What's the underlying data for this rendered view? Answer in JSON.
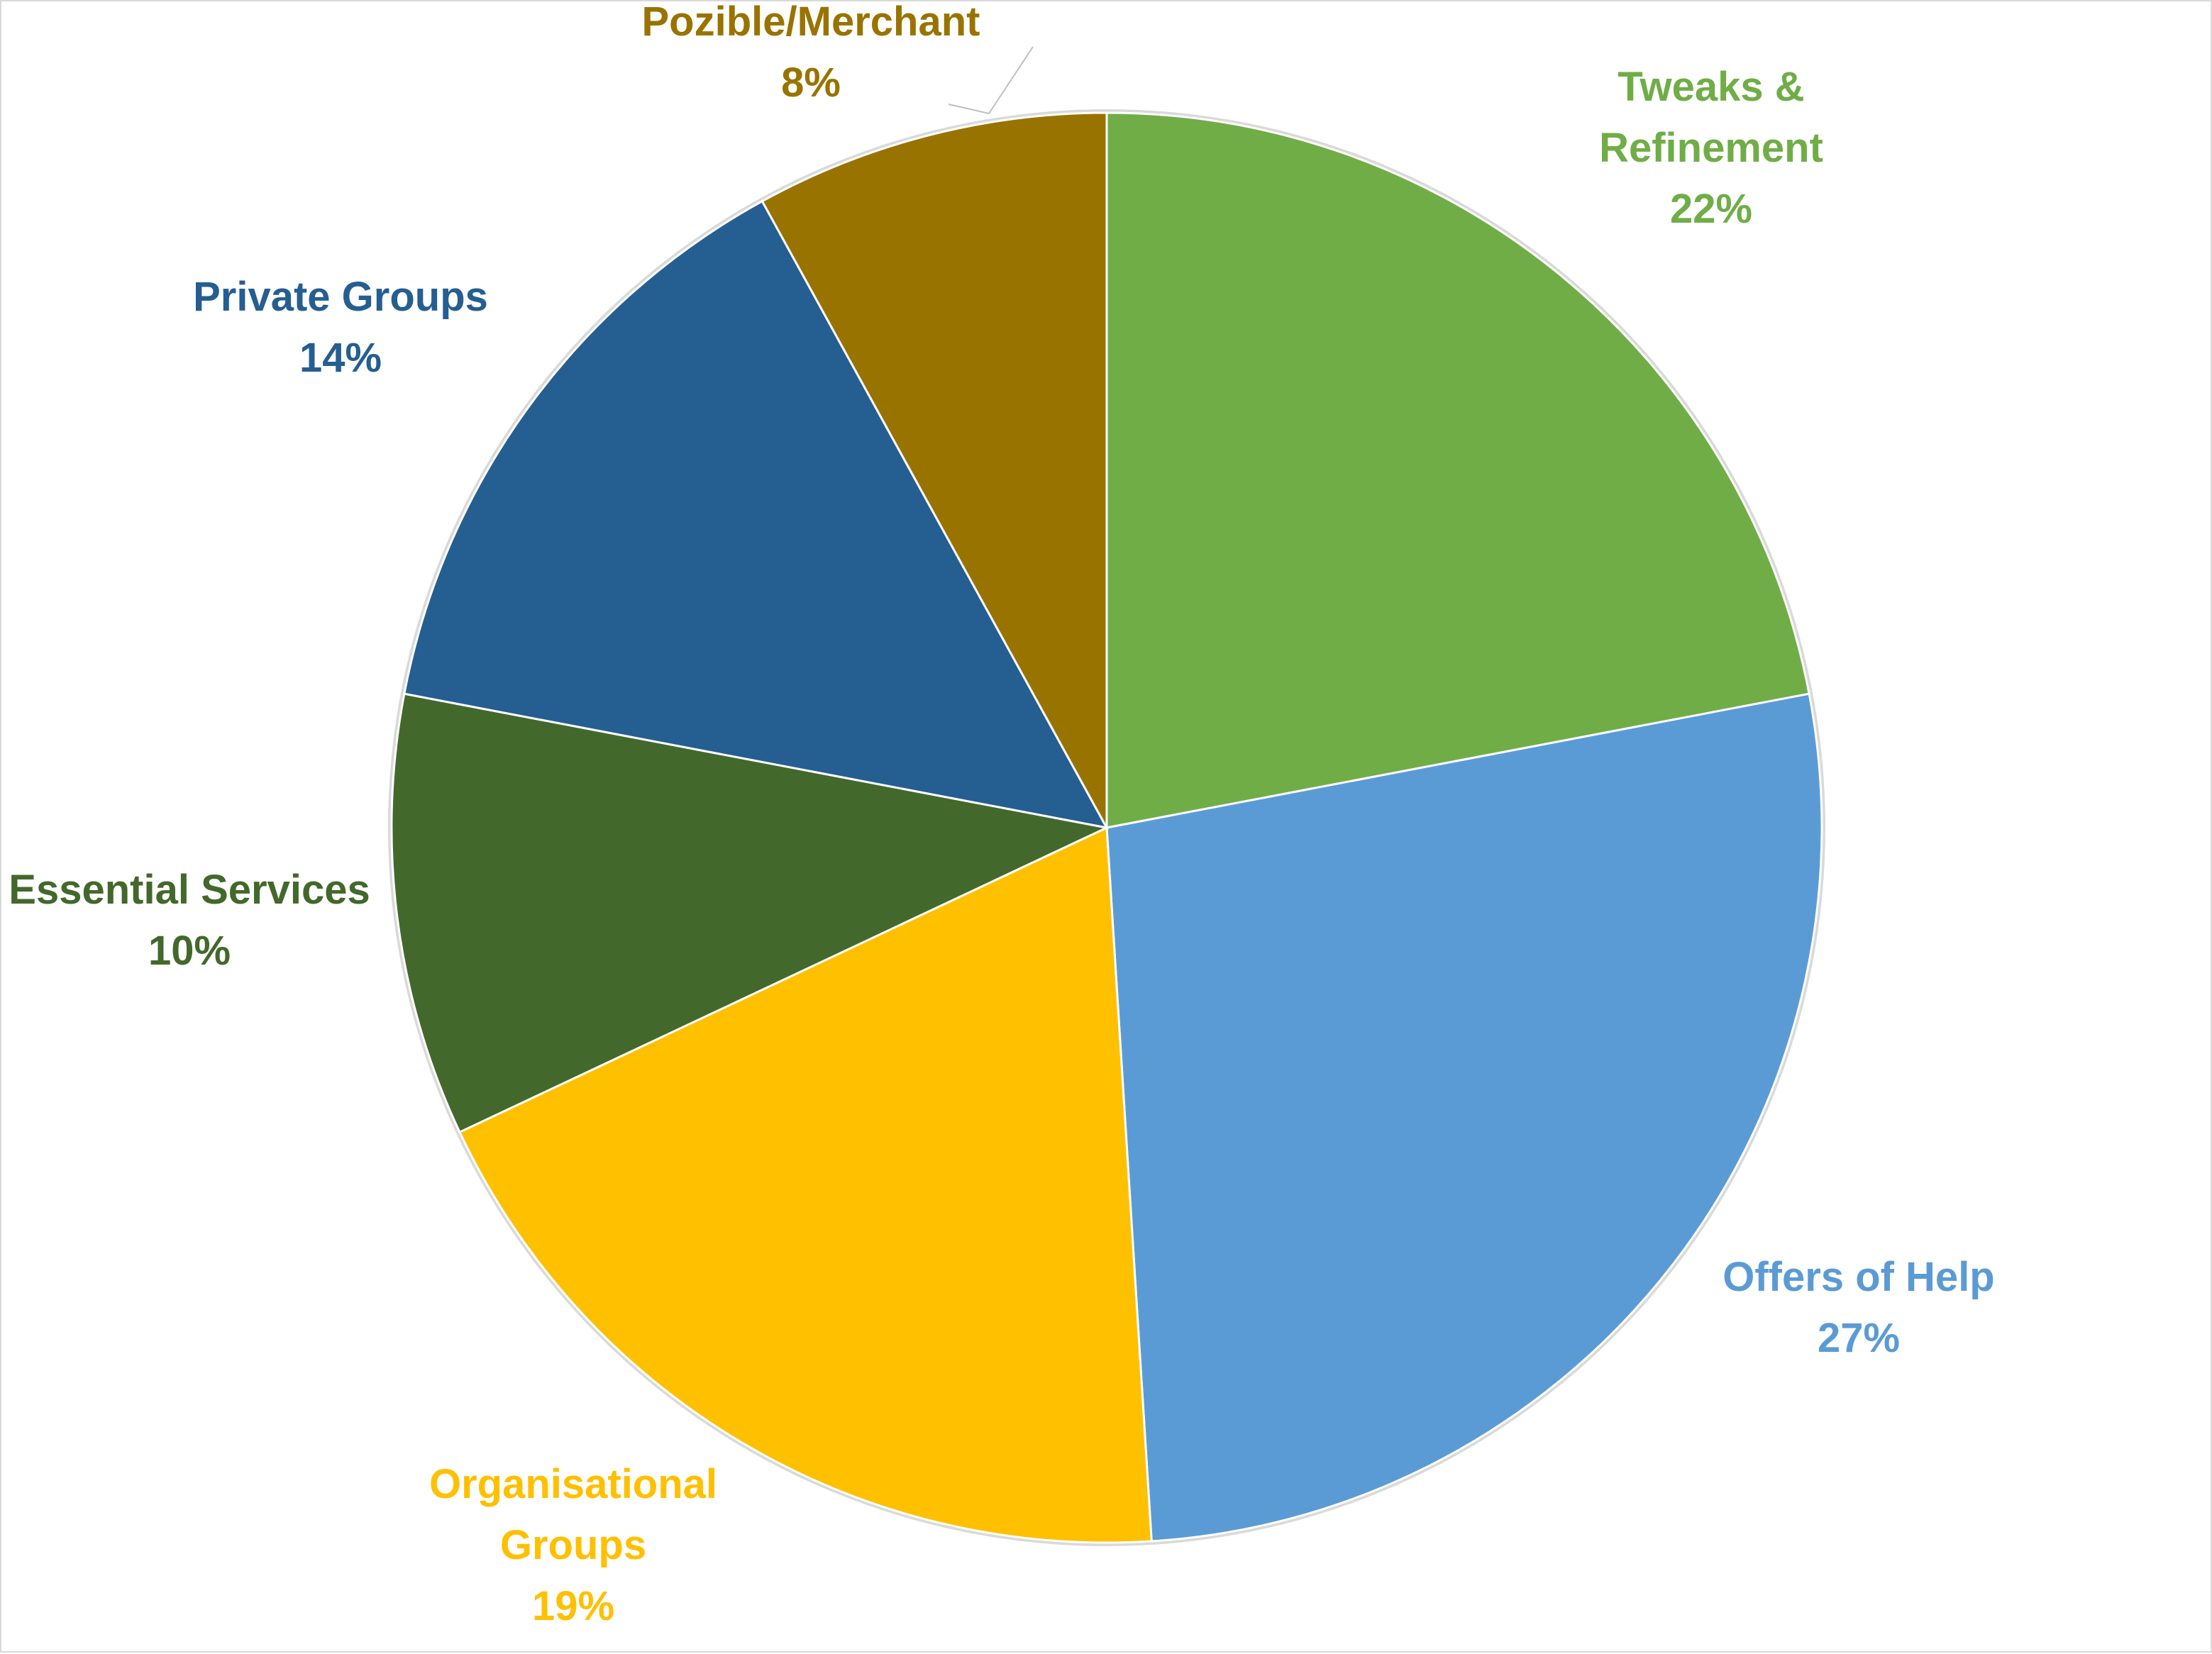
{
  "chart_data": {
    "type": "pie",
    "title": "",
    "start_angle_deg": 0,
    "direction": "clockwise",
    "slices": [
      {
        "label_lines": [
          "Tweaks &",
          "Refinement"
        ],
        "percent_label": "22%",
        "value": 22,
        "color": "#70AD47"
      },
      {
        "label_lines": [
          "Offers of Help"
        ],
        "percent_label": "27%",
        "value": 27,
        "color": "#5B9BD5"
      },
      {
        "label_lines": [
          "Organisational",
          "Groups"
        ],
        "percent_label": "19%",
        "value": 19,
        "color": "#FFC000"
      },
      {
        "label_lines": [
          "Essential Services"
        ],
        "percent_label": "10%",
        "value": 10,
        "color": "#43682B"
      },
      {
        "label_lines": [
          "Private Groups"
        ],
        "percent_label": "14%",
        "value": 14,
        "color": "#255E91"
      },
      {
        "label_lines": [
          "Pozible/Merchant"
        ],
        "percent_label": "8%",
        "value": 8,
        "color": "#997300"
      }
    ],
    "legend": "none",
    "data_labels": "outside, category name and percentage, colored to match slice"
  }
}
